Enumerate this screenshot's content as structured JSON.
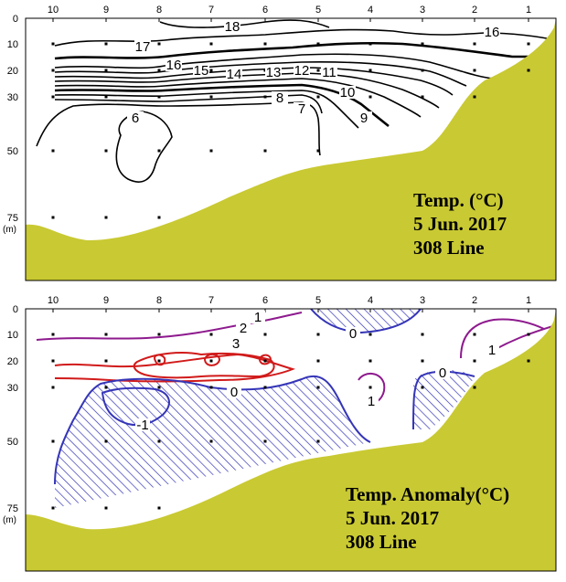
{
  "colors": {
    "terrain": "#c9c933",
    "frame": "#000000",
    "contour": "#000000",
    "anomaly_hot": "#d11a1a",
    "anomaly_warm": "#8e1a8e",
    "anomaly_cold": "#3535b8",
    "hatch": "#3535b8"
  },
  "chart_data": [
    {
      "type": "contour",
      "panel": "temperature",
      "title_lines": [
        "Temp. (°C)",
        "5 Jun. 2017",
        "308 Line"
      ],
      "stations": [
        "10",
        "9",
        "8",
        "7",
        "6",
        "5",
        "4",
        "3",
        "2",
        "1"
      ],
      "depth_ticks": [
        "0",
        "10",
        "20",
        "30",
        "50",
        "75"
      ],
      "depth_unit": "(m)",
      "depth_range_m": [
        0,
        75
      ],
      "contour_levels": [
        6,
        7,
        8,
        9,
        10,
        11,
        12,
        13,
        14,
        15,
        16,
        17,
        18
      ],
      "contour_labels": [
        "18",
        "17",
        "16",
        "16",
        "15",
        "14",
        "13",
        "12",
        "11",
        "10",
        "9",
        "8",
        "7",
        "6"
      ]
    },
    {
      "type": "contour",
      "panel": "anomaly",
      "title_lines": [
        "Temp. Anomaly(°C)",
        "5 Jun. 2017",
        "308 Line"
      ],
      "stations": [
        "10",
        "9",
        "8",
        "7",
        "6",
        "5",
        "4",
        "3",
        "2",
        "1"
      ],
      "depth_ticks": [
        "0",
        "10",
        "20",
        "30",
        "50",
        "75"
      ],
      "depth_unit": "(m)",
      "depth_range_m": [
        0,
        75
      ],
      "contour_levels": [
        -1,
        0,
        1,
        2,
        3
      ],
      "contour_labels": [
        "3",
        "2",
        "1",
        "0",
        "0",
        "0",
        "1",
        "1",
        "-1"
      ],
      "hatched": "negative anomaly (below 0 °C)"
    }
  ]
}
